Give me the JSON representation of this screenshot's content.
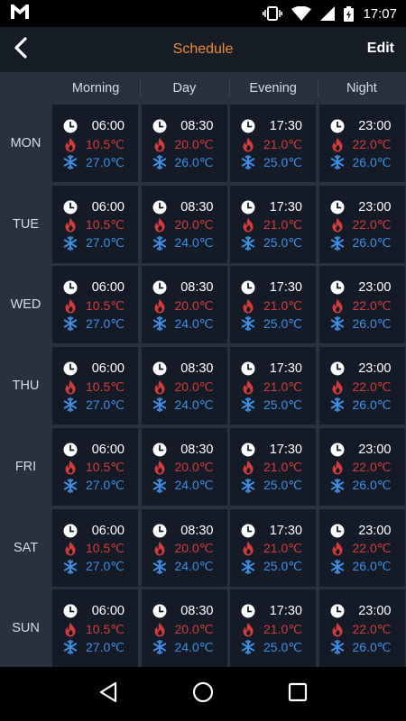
{
  "status_bar": {
    "time": "17:07",
    "icons": [
      "gmail-icon",
      "vibrate-icon",
      "wifi-icon",
      "signal-icon",
      "battery-charging-icon"
    ]
  },
  "app_bar": {
    "title": "Schedule",
    "edit_label": "Edit",
    "back_icon": "chevron-left-icon",
    "title_color": "#f08a2c"
  },
  "columns": [
    "Morning",
    "Day",
    "Evening",
    "Night"
  ],
  "days": [
    {
      "label": "MON",
      "slots": [
        {
          "time": "06:00",
          "heat": "10.5℃",
          "cool": "27.0℃"
        },
        {
          "time": "08:30",
          "heat": "20.0℃",
          "cool": "26.0℃"
        },
        {
          "time": "17:30",
          "heat": "21.0℃",
          "cool": "25.0℃"
        },
        {
          "time": "23:00",
          "heat": "22.0℃",
          "cool": "26.0℃"
        }
      ]
    },
    {
      "label": "TUE",
      "slots": [
        {
          "time": "06:00",
          "heat": "10.5℃",
          "cool": "27.0℃"
        },
        {
          "time": "08:30",
          "heat": "20.0℃",
          "cool": "24.0℃"
        },
        {
          "time": "17:30",
          "heat": "21.0℃",
          "cool": "25.0℃"
        },
        {
          "time": "23:00",
          "heat": "22.0℃",
          "cool": "26.0℃"
        }
      ]
    },
    {
      "label": "WED",
      "slots": [
        {
          "time": "06:00",
          "heat": "10.5℃",
          "cool": "27.0℃"
        },
        {
          "time": "08:30",
          "heat": "20.0℃",
          "cool": "24.0℃"
        },
        {
          "time": "17:30",
          "heat": "21.0℃",
          "cool": "25.0℃"
        },
        {
          "time": "23:00",
          "heat": "22.0℃",
          "cool": "26.0℃"
        }
      ]
    },
    {
      "label": "THU",
      "slots": [
        {
          "time": "06:00",
          "heat": "10.5℃",
          "cool": "27.0℃"
        },
        {
          "time": "08:30",
          "heat": "20.0℃",
          "cool": "24.0℃"
        },
        {
          "time": "17:30",
          "heat": "21.0℃",
          "cool": "25.0℃"
        },
        {
          "time": "23:00",
          "heat": "22.0℃",
          "cool": "26.0℃"
        }
      ]
    },
    {
      "label": "FRI",
      "slots": [
        {
          "time": "06:00",
          "heat": "10.5℃",
          "cool": "27.0℃"
        },
        {
          "time": "08:30",
          "heat": "20.0℃",
          "cool": "24.0℃"
        },
        {
          "time": "17:30",
          "heat": "21.0℃",
          "cool": "25.0℃"
        },
        {
          "time": "23:00",
          "heat": "22.0℃",
          "cool": "26.0℃"
        }
      ]
    },
    {
      "label": "SAT",
      "slots": [
        {
          "time": "06:00",
          "heat": "10.5℃",
          "cool": "27.0℃"
        },
        {
          "time": "08:30",
          "heat": "20.0℃",
          "cool": "24.0℃"
        },
        {
          "time": "17:30",
          "heat": "21.0℃",
          "cool": "25.0℃"
        },
        {
          "time": "23:00",
          "heat": "22.0℃",
          "cool": "26.0℃"
        }
      ]
    },
    {
      "label": "SUN",
      "slots": [
        {
          "time": "06:00",
          "heat": "10.5℃",
          "cool": "27.0℃"
        },
        {
          "time": "08:30",
          "heat": "20.0℃",
          "cool": "24.0℃"
        },
        {
          "time": "17:30",
          "heat": "21.0℃",
          "cool": "25.0℃"
        },
        {
          "time": "23:00",
          "heat": "22.0℃",
          "cool": "26.0℃"
        }
      ]
    }
  ],
  "colors": {
    "heat": "#d43b3b",
    "cool": "#3d8fe6",
    "accent": "#f08a2c",
    "cell_bg": "#141b26",
    "grid_bg": "#28323e"
  },
  "nav_bar": {
    "icons": [
      "back-triangle-icon",
      "home-circle-icon",
      "recents-square-icon"
    ]
  }
}
